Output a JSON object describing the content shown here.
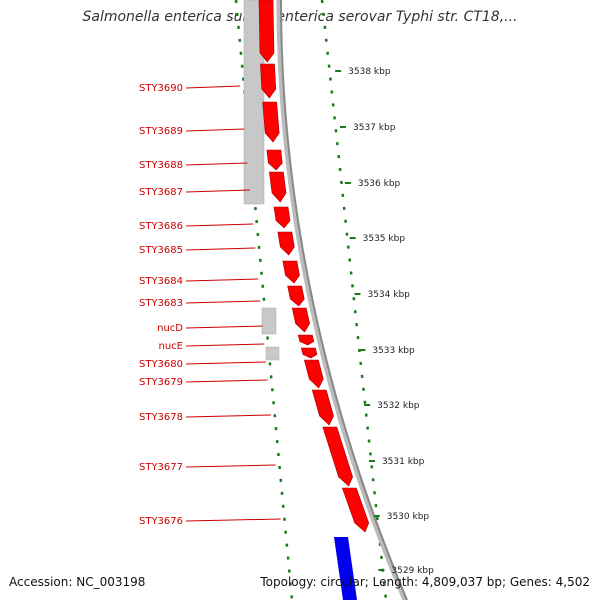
{
  "header": {
    "title": "Salmonella enterica subsp. enterica serovar Typhi str. CT18,..."
  },
  "footer": {
    "accession": "Accession: NC_003198",
    "summary": "Topology: circular; Length: 4,809,037 bp; Genes: 4,502"
  },
  "colors": {
    "forward_gene": "#ff0000",
    "reverse_gene": "#c8c8c8",
    "highlight": "#0000ee",
    "backbone": "#888888",
    "ticks": "#1a7a1a",
    "labels": "#cc0000"
  },
  "genes": [
    {
      "name": "STY3690"
    },
    {
      "name": "STY3689"
    },
    {
      "name": "STY3688"
    },
    {
      "name": "STY3687"
    },
    {
      "name": "STY3686"
    },
    {
      "name": "STY3685"
    },
    {
      "name": "STY3684"
    },
    {
      "name": "STY3683"
    },
    {
      "name": "nucD"
    },
    {
      "name": "nucE"
    },
    {
      "name": "STY3680"
    },
    {
      "name": "STY3679"
    },
    {
      "name": "STY3678"
    },
    {
      "name": "STY3677"
    },
    {
      "name": "STY3676"
    }
  ],
  "kbp_labels": [
    "3538 kbp",
    "3537 kbp",
    "3536 kbp",
    "3535 kbp",
    "3534 kbp",
    "3533 kbp",
    "3532 kbp",
    "3531 kbp",
    "3530 kbp",
    "3529 kbp"
  ]
}
